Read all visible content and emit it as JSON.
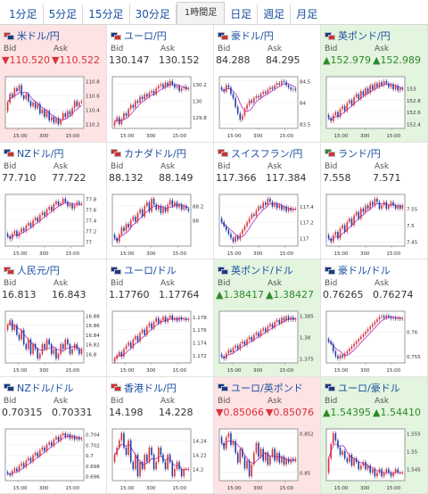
{
  "tabs": [
    "1分足",
    "5分足",
    "15分足",
    "30分足",
    "1時間足",
    "日足",
    "週足",
    "月足"
  ],
  "active_tab": 4,
  "labels": {
    "bid": "Bid",
    "ask": "Ask"
  },
  "arrows": {
    "down": "▼",
    "up": "▲"
  },
  "colors": {
    "down_bg": "#fde3e4",
    "up_bg": "#e3f4df",
    "bull": "#d9333b",
    "bear": "#1f3fa6",
    "ma": "#b02ac8",
    "link": "#1a4fa0"
  },
  "tiles": [
    {
      "title": "米ドル/円",
      "flags": [
        "#c33",
        "#1a3a8a"
      ],
      "bid": "110.520",
      "ask": "110.522",
      "trend": "down",
      "chart_data": {
        "type": "candlestick",
        "yticks": [
          "110.8",
          "110.6",
          "110.4",
          "110.2"
        ],
        "xticks": [
          "15",
          "3",
          "15"
        ],
        "closes": [
          110.5,
          110.62,
          110.58,
          110.7,
          110.66,
          110.74,
          110.6,
          110.55,
          110.62,
          110.52,
          110.45,
          110.5,
          110.42,
          110.48,
          110.35,
          110.4,
          110.3,
          110.38,
          110.25,
          110.3,
          110.22,
          110.28,
          110.2,
          110.26,
          110.35,
          110.3,
          110.38,
          110.33,
          110.42,
          110.52,
          110.45,
          110.5,
          110.52
        ]
      }
    },
    {
      "title": "ユーロ/円",
      "flags": [
        "#1a3a8a",
        "#c33"
      ],
      "bid": "130.147",
      "ask": "130.152",
      "trend": "none",
      "chart_data": {
        "type": "candlestick",
        "yticks": [
          "130.2",
          "130",
          "129.8"
        ],
        "xticks": [
          "15",
          "3",
          "15"
        ],
        "closes": [
          129.75,
          129.8,
          129.72,
          129.78,
          129.85,
          129.82,
          129.9,
          129.95,
          129.92,
          130,
          129.98,
          130.05,
          130.02,
          130.08,
          130.05,
          130.1,
          130.12,
          130.08,
          130.15,
          130.18,
          130.2,
          130.16,
          130.22,
          130.18,
          130.24,
          130.2,
          130.16,
          130.18,
          130.12,
          130.15,
          130.17,
          130.14,
          130.15
        ]
      }
    },
    {
      "title": "豪ドル/円",
      "flags": [
        "#1a3a8a",
        "#c33"
      ],
      "bid": "84.288",
      "ask": "84.295",
      "trend": "none",
      "chart_data": {
        "type": "candlestick",
        "yticks": [
          "84.5",
          "84",
          "83.5"
        ],
        "xticks": [
          "15",
          "3",
          "15"
        ],
        "closes": [
          84.3,
          84.25,
          84.4,
          84.35,
          84.2,
          84.1,
          83.9,
          83.75,
          83.6,
          83.7,
          83.85,
          83.95,
          84.05,
          84,
          84.1,
          84.15,
          84.12,
          84.2,
          84.25,
          84.22,
          84.3,
          84.35,
          84.32,
          84.4,
          84.45,
          84.42,
          84.5,
          84.48,
          84.4,
          84.35,
          84.3,
          84.32,
          84.29
        ]
      }
    },
    {
      "title": "英ポンド/円",
      "flags": [
        "#1a3a8a",
        "#c33"
      ],
      "bid": "152.979",
      "ask": "152.989",
      "trend": "up",
      "chart_data": {
        "type": "candlestick",
        "yticks": [
          "153",
          "152.8",
          "152.6",
          "152.4"
        ],
        "xticks": [
          "15",
          "3",
          "15"
        ],
        "closes": [
          152.5,
          152.45,
          152.55,
          152.6,
          152.52,
          152.65,
          152.7,
          152.62,
          152.75,
          152.8,
          152.72,
          152.85,
          152.9,
          152.82,
          152.95,
          152.88,
          153,
          152.92,
          153.05,
          152.98,
          153.08,
          153.02,
          153.1,
          153.05,
          153.12,
          153.08,
          153.02,
          153.06,
          152.98,
          153.04,
          152.96,
          153,
          152.98
        ]
      }
    },
    {
      "title": "NZドル/円",
      "flags": [
        "#1a3a8a",
        "#c33"
      ],
      "bid": "77.710",
      "ask": "77.722",
      "trend": "none",
      "chart_data": {
        "type": "candlestick",
        "yticks": [
          "77.8",
          "77.6",
          "77.4",
          "77.2",
          "77"
        ],
        "xticks": [
          "15",
          "3",
          "15"
        ],
        "closes": [
          77.1,
          77.05,
          77.15,
          77.2,
          77.1,
          77.18,
          77.25,
          77.2,
          77.3,
          77.35,
          77.28,
          77.4,
          77.45,
          77.38,
          77.5,
          77.55,
          77.48,
          77.6,
          77.65,
          77.58,
          77.7,
          77.75,
          77.68,
          77.72,
          77.8,
          77.74,
          77.66,
          77.7,
          77.62,
          77.68,
          77.74,
          77.7,
          77.71
        ]
      }
    },
    {
      "title": "カナダドル/円",
      "flags": [
        "#c33",
        "#c33"
      ],
      "bid": "88.132",
      "ask": "88.149",
      "trend": "none",
      "chart_data": {
        "type": "candlestick",
        "yticks": [
          "88.2",
          "88"
        ],
        "xticks": [
          "15",
          "3",
          "15"
        ],
        "closes": [
          87.75,
          87.7,
          87.8,
          87.9,
          87.85,
          87.95,
          87.9,
          88,
          88.05,
          87.98,
          88.1,
          88.15,
          88.05,
          88.2,
          88.25,
          88.12,
          88.3,
          88.22,
          88.15,
          88.2,
          88.1,
          88.18,
          88.12,
          88.22,
          88.28,
          88.2,
          88.25,
          88.18,
          88.22,
          88.15,
          88.2,
          88.16,
          88.13
        ]
      }
    },
    {
      "title": "スイスフラン/円",
      "flags": [
        "#c33",
        "#c33"
      ],
      "bid": "117.366",
      "ask": "117.384",
      "trend": "none",
      "chart_data": {
        "type": "candlestick",
        "yticks": [
          "117.4",
          "117.2",
          "117"
        ],
        "xticks": [
          "15",
          "3",
          "15"
        ],
        "closes": [
          117.2,
          117.15,
          117.1,
          117.05,
          117,
          116.95,
          117.02,
          116.98,
          117.05,
          117.1,
          117.15,
          117.2,
          117.25,
          117.3,
          117.28,
          117.35,
          117.4,
          117.38,
          117.45,
          117.42,
          117.5,
          117.46,
          117.4,
          117.44,
          117.38,
          117.42,
          117.36,
          117.4,
          117.34,
          117.38,
          117.35,
          117.37,
          117.37
        ]
      }
    },
    {
      "title": "ランド/円",
      "flags": [
        "#2a8a3a",
        "#c33"
      ],
      "bid": "7.558",
      "ask": "7.571",
      "trend": "none",
      "chart_data": {
        "type": "candlestick",
        "yticks": [
          "7.55",
          "7.5",
          "7.45"
        ],
        "xticks": [
          "15",
          "3",
          "15"
        ],
        "closes": [
          7.46,
          7.45,
          7.47,
          7.48,
          7.46,
          7.49,
          7.5,
          7.48,
          7.51,
          7.52,
          7.5,
          7.53,
          7.54,
          7.52,
          7.55,
          7.54,
          7.56,
          7.55,
          7.57,
          7.56,
          7.58,
          7.57,
          7.55,
          7.56,
          7.57,
          7.55,
          7.56,
          7.57,
          7.56,
          7.55,
          7.56,
          7.55,
          7.56
        ]
      }
    },
    {
      "title": "人民元/円",
      "flags": [
        "#c33",
        "#c33"
      ],
      "bid": "16.813",
      "ask": "16.843",
      "trend": "none",
      "chart_data": {
        "type": "candlestick",
        "yticks": [
          "16.88",
          "16.86",
          "16.84",
          "16.82",
          "16.8"
        ],
        "xticks": [
          "15",
          "3",
          "15"
        ],
        "closes": [
          16.86,
          16.87,
          16.85,
          16.86,
          16.84,
          16.83,
          16.85,
          16.82,
          16.81,
          16.83,
          16.8,
          16.82,
          16.81,
          16.79,
          16.8,
          16.82,
          16.81,
          16.83,
          16.82,
          16.8,
          16.81,
          16.79,
          16.8,
          16.82,
          16.81,
          16.83,
          16.82,
          16.8,
          16.81,
          16.82,
          16.81,
          16.8,
          16.81
        ]
      }
    },
    {
      "title": "ユーロ/ドル",
      "flags": [
        "#1a3a8a",
        "#1a3a8a"
      ],
      "bid": "1.17760",
      "ask": "1.17764",
      "trend": "none",
      "chart_data": {
        "type": "candlestick",
        "yticks": [
          "1.178",
          "1.176",
          "1.174",
          "1.172"
        ],
        "xticks": [
          "15",
          "3",
          "15"
        ],
        "closes": [
          1.1715,
          1.172,
          1.1725,
          1.1718,
          1.173,
          1.1735,
          1.174,
          1.1732,
          1.1745,
          1.175,
          1.1742,
          1.1755,
          1.176,
          1.1752,
          1.1765,
          1.177,
          1.1762,
          1.1772,
          1.1778,
          1.177,
          1.1775,
          1.178,
          1.1772,
          1.1778,
          1.1782,
          1.1775,
          1.1778,
          1.1774,
          1.1779,
          1.1776,
          1.1777,
          1.1775,
          1.1776
        ]
      }
    },
    {
      "title": "英ポンド/ドル",
      "flags": [
        "#1a3a8a",
        "#1a3a8a"
      ],
      "bid": "1.38417",
      "ask": "1.38427",
      "trend": "up",
      "chart_data": {
        "type": "candlestick",
        "yticks": [
          "1.385",
          "1.38",
          "1.375"
        ],
        "xticks": [
          "15",
          "3",
          "15"
        ],
        "closes": [
          1.3755,
          1.375,
          1.3762,
          1.377,
          1.3765,
          1.3775,
          1.378,
          1.3772,
          1.3785,
          1.379,
          1.3782,
          1.3795,
          1.38,
          1.3792,
          1.3805,
          1.381,
          1.3802,
          1.3815,
          1.382,
          1.3812,
          1.3825,
          1.383,
          1.3822,
          1.3835,
          1.384,
          1.3832,
          1.3845,
          1.3838,
          1.3848,
          1.384,
          1.3846,
          1.384,
          1.3842
        ]
      }
    },
    {
      "title": "豪ドル/ドル",
      "flags": [
        "#1a3a8a",
        "#1a3a8a"
      ],
      "bid": "0.76265",
      "ask": "0.76274",
      "trend": "none",
      "chart_data": {
        "type": "candlestick",
        "yticks": [
          "0.76",
          "0.755"
        ],
        "xticks": [
          "15",
          "3",
          "15"
        ],
        "closes": [
          0.758,
          0.7575,
          0.756,
          0.755,
          0.7545,
          0.7552,
          0.7548,
          0.7555,
          0.756,
          0.7565,
          0.757,
          0.7575,
          0.758,
          0.7585,
          0.759,
          0.7595,
          0.76,
          0.7605,
          0.761,
          0.7615,
          0.762,
          0.7625,
          0.763,
          0.7632,
          0.7628,
          0.7633,
          0.763,
          0.7627,
          0.7629,
          0.7626,
          0.7628,
          0.7626,
          0.7627
        ]
      }
    },
    {
      "title": "NZドル/ドル",
      "flags": [
        "#1a3a8a",
        "#1a3a8a"
      ],
      "bid": "0.70315",
      "ask": "0.70331",
      "trend": "none",
      "chart_data": {
        "type": "candlestick",
        "yticks": [
          "0.704",
          "0.702",
          "0.7",
          "0.698",
          "0.696"
        ],
        "xticks": [
          "15",
          "3",
          "15"
        ],
        "closes": [
          0.6965,
          0.6962,
          0.697,
          0.6975,
          0.697,
          0.698,
          0.6985,
          0.6978,
          0.699,
          0.6995,
          0.6988,
          0.7,
          0.7005,
          0.6998,
          0.701,
          0.7015,
          0.7008,
          0.702,
          0.7025,
          0.7018,
          0.703,
          0.7035,
          0.7028,
          0.7038,
          0.7042,
          0.7035,
          0.704,
          0.7032,
          0.7036,
          0.703,
          0.7034,
          0.703,
          0.7032
        ]
      }
    },
    {
      "title": "香港ドル/円",
      "flags": [
        "#c33",
        "#c33"
      ],
      "bid": "14.198",
      "ask": "14.228",
      "trend": "none",
      "chart_data": {
        "type": "candlestick",
        "yticks": [
          "14.24",
          "14.22",
          "14.2"
        ],
        "xticks": [
          "15",
          "3",
          "15"
        ],
        "closes": [
          14.22,
          14.23,
          14.24,
          14.25,
          14.23,
          14.22,
          14.24,
          14.21,
          14.2,
          14.22,
          14.19,
          14.21,
          14.2,
          14.22,
          14.21,
          14.23,
          14.22,
          14.2,
          14.21,
          14.23,
          14.22,
          14.21,
          14.2,
          14.22,
          14.21,
          14.19,
          14.2,
          14.21,
          14.2,
          14.19,
          14.2,
          14.2,
          14.2
        ]
      }
    },
    {
      "title": "ユーロ/英ポンド",
      "flags": [
        "#1a3a8a",
        "#1a3a8a"
      ],
      "bid": "0.85066",
      "ask": "0.85076",
      "trend": "down",
      "chart_data": {
        "type": "candlestick",
        "yticks": [
          "0.852",
          "0.85"
        ],
        "xticks": [
          "15",
          "3",
          "15"
        ],
        "closes": [
          0.8515,
          0.8512,
          0.8518,
          0.852,
          0.8514,
          0.8516,
          0.851,
          0.8505,
          0.8512,
          0.8508,
          0.8502,
          0.8506,
          0.8498,
          0.8504,
          0.851,
          0.8515,
          0.8508,
          0.8512,
          0.8506,
          0.851,
          0.8504,
          0.8508,
          0.8512,
          0.8506,
          0.851,
          0.8505,
          0.8508,
          0.8504,
          0.8507,
          0.8505,
          0.8507,
          0.8506,
          0.8507
        ]
      }
    },
    {
      "title": "ユーロ/豪ドル",
      "flags": [
        "#1a3a8a",
        "#1a3a8a"
      ],
      "bid": "1.54395",
      "ask": "1.54410",
      "trend": "up",
      "chart_data": {
        "type": "candlestick",
        "yticks": [
          "1.555",
          "1.55",
          "1.545"
        ],
        "xticks": [
          "15",
          "3",
          "15"
        ],
        "closes": [
          1.548,
          1.552,
          1.555,
          1.553,
          1.551,
          1.549,
          1.55,
          1.548,
          1.547,
          1.549,
          1.546,
          1.548,
          1.547,
          1.545,
          1.546,
          1.547,
          1.545,
          1.546,
          1.544,
          1.545,
          1.543,
          1.544,
          1.545,
          1.543,
          1.544,
          1.545,
          1.544,
          1.543,
          1.544,
          1.545,
          1.544,
          1.544,
          1.544
        ]
      }
    }
  ]
}
